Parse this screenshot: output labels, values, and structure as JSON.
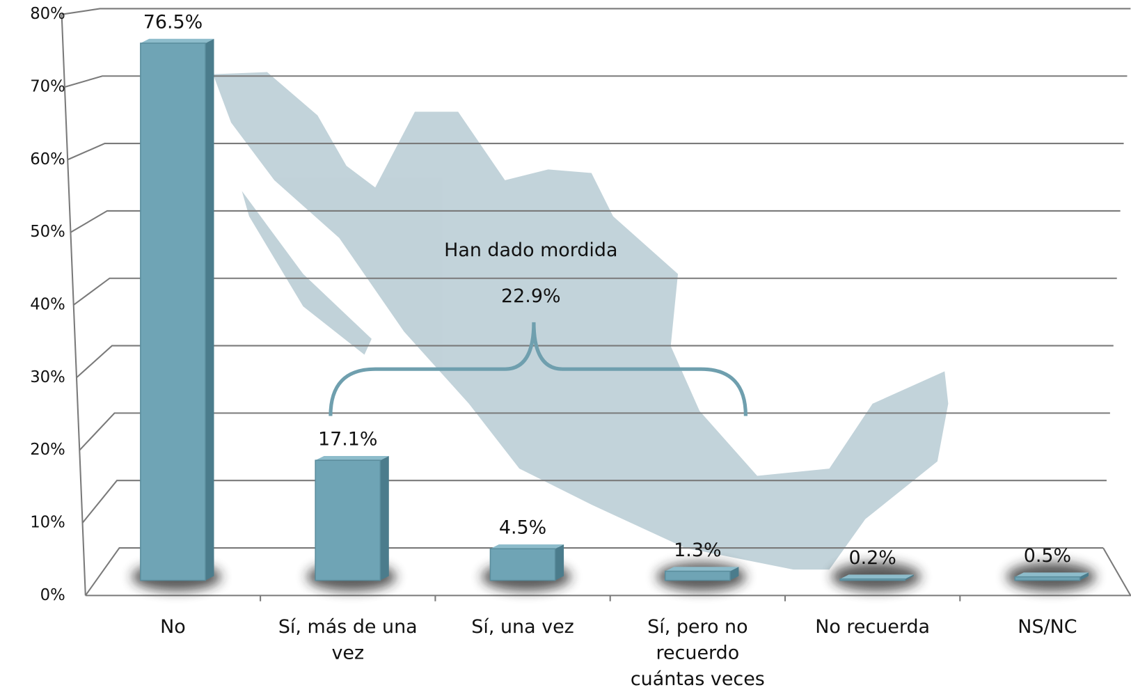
{
  "chart_data": {
    "type": "bar3d",
    "categories": [
      "No",
      "Sí, más de una vez",
      "Sí, una vez",
      "Sí, pero no recuerdo cuántas veces",
      "No recuerda",
      "NS/NC"
    ],
    "values": [
      76.5,
      17.1,
      4.5,
      1.3,
      0.2,
      0.5
    ],
    "value_labels": [
      "76.5%",
      "17.1%",
      "4.5%",
      "1.3%",
      "0.2%",
      "0.5%"
    ],
    "color": "#6fa4b5",
    "ylim": [
      0,
      80
    ],
    "yticks": [
      {
        "value": 0,
        "label": "0%"
      },
      {
        "value": 10,
        "label": "10%"
      },
      {
        "value": 20,
        "label": "20%"
      },
      {
        "value": 30,
        "label": "30%"
      },
      {
        "value": 40,
        "label": "40%"
      },
      {
        "value": 50,
        "label": "50%"
      },
      {
        "value": 60,
        "label": "60%"
      },
      {
        "value": 70,
        "label": "70%"
      },
      {
        "value": 80,
        "label": "80%"
      }
    ],
    "grid": true,
    "bracket": {
      "label": "Han dado mordida",
      "value": 22.9,
      "value_label": "22.9%"
    }
  }
}
